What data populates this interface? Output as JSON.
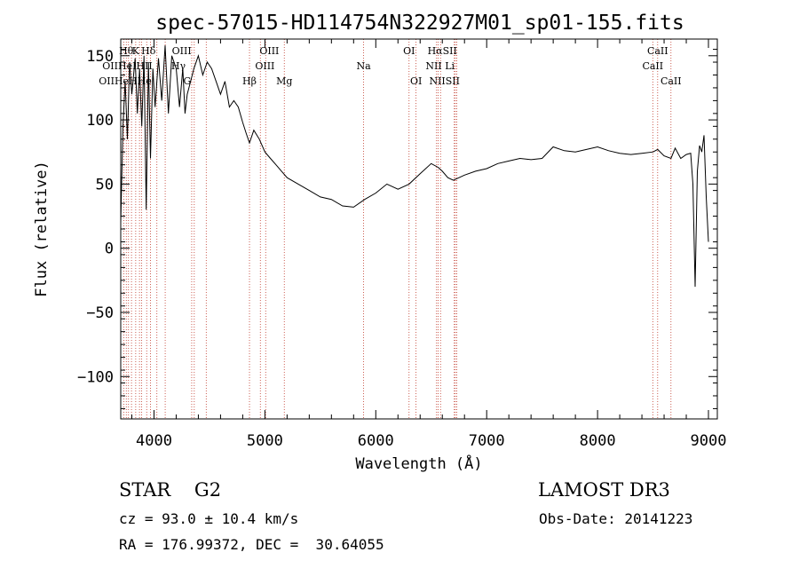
{
  "chart_data": {
    "type": "line",
    "title": "spec-57015-HD114754N322927M01_sp01-155.fits",
    "xlabel": "Wavelength (Å)",
    "ylabel": "Flux (relative)",
    "xlim": [
      3700,
      9080
    ],
    "ylim": [
      -133,
      163
    ],
    "x_ticks": [
      4000,
      5000,
      6000,
      7000,
      8000,
      9000
    ],
    "x_tick_labels": [
      "4000",
      "5000",
      "6000",
      "7000",
      "8000",
      "9000"
    ],
    "y_ticks": [
      -100,
      -50,
      0,
      50,
      100,
      150
    ],
    "y_tick_labels": [
      "−100",
      "−50",
      "0",
      "50",
      "100",
      "150"
    ],
    "grid": false,
    "series": [
      {
        "x": [
          3700,
          3720,
          3740,
          3760,
          3780,
          3800,
          3830,
          3850,
          3870,
          3890,
          3910,
          3930,
          3950,
          3968,
          3990,
          4010,
          4040,
          4070,
          4100,
          4130,
          4160,
          4200,
          4230,
          4260,
          4280,
          4300,
          4330,
          4360,
          4400,
          4440,
          4480,
          4520,
          4560,
          4600,
          4640,
          4680,
          4720,
          4760,
          4800,
          4830,
          4861,
          4900,
          4950,
          5000,
          5050,
          5100,
          5150,
          5200,
          5300,
          5400,
          5500,
          5600,
          5700,
          5800,
          5900,
          6000,
          6100,
          6200,
          6300,
          6400,
          6500,
          6563,
          6600,
          6650,
          6700,
          6750,
          6800,
          6900,
          7000,
          7100,
          7200,
          7300,
          7400,
          7500,
          7600,
          7700,
          7800,
          7900,
          8000,
          8100,
          8200,
          8300,
          8400,
          8500,
          8542,
          8600,
          8662,
          8700,
          8750,
          8800,
          8840,
          8860,
          8880,
          8900,
          8920,
          8940,
          8960,
          8980,
          9000
        ],
        "y": [
          20,
          95,
          130,
          85,
          145,
          120,
          148,
          105,
          140,
          95,
          150,
          30,
          145,
          70,
          140,
          110,
          148,
          115,
          158,
          105,
          150,
          140,
          110,
          140,
          105,
          120,
          130,
          140,
          150,
          135,
          145,
          140,
          130,
          120,
          130,
          110,
          115,
          110,
          98,
          90,
          82,
          92,
          85,
          75,
          70,
          65,
          60,
          55,
          50,
          45,
          40,
          38,
          33,
          32,
          38,
          43,
          50,
          46,
          50,
          58,
          66,
          63,
          60,
          55,
          53,
          55,
          57,
          60,
          62,
          66,
          68,
          70,
          69,
          70,
          79,
          76,
          75,
          77,
          79,
          76,
          74,
          73,
          74,
          75,
          77,
          72,
          70,
          78,
          70,
          73,
          74,
          50,
          -30,
          60,
          80,
          75,
          88,
          40,
          5
        ]
      }
    ],
    "line_labels": {
      "row1": [
        {
          "x": 3750,
          "text": "Hθ"
        },
        {
          "x": 3835,
          "text": "K"
        },
        {
          "x": 3950,
          "text": "Hδ"
        },
        {
          "x": 4250,
          "text": "OIII"
        },
        {
          "x": 5040,
          "text": "OIII"
        },
        {
          "x": 6300,
          "text": "OI"
        },
        {
          "x": 6600,
          "text": "HαSII"
        },
        {
          "x": 8542,
          "text": "CaII"
        }
      ],
      "row2": [
        {
          "x": 3760,
          "text": "OIIHeIHII"
        },
        {
          "x": 4220,
          "text": "Hγ"
        },
        {
          "x": 5000,
          "text": "OIII"
        },
        {
          "x": 5890,
          "text": "Na"
        },
        {
          "x": 6580,
          "text": "NII Li"
        },
        {
          "x": 8498,
          "text": "CaII"
        }
      ],
      "row3": [
        {
          "x": 3740,
          "text": "OIIHeHHe"
        },
        {
          "x": 4300,
          "text": "G"
        },
        {
          "x": 4861,
          "text": "Hβ"
        },
        {
          "x": 5175,
          "text": "Mg"
        },
        {
          "x": 6363,
          "text": "OI"
        },
        {
          "x": 6620,
          "text": "NIISII"
        },
        {
          "x": 8662,
          "text": "CaII"
        }
      ]
    },
    "line_markers": [
      3727,
      3750,
      3770,
      3797,
      3835,
      3869,
      3889,
      3934,
      3968,
      4026,
      4101,
      4340,
      4363,
      4471,
      4861,
      4959,
      5007,
      5175,
      5890,
      6300,
      6363,
      6548,
      6563,
      6584,
      6708,
      6717,
      6731,
      8498,
      8542,
      8662
    ]
  },
  "info": {
    "object_line": "STAR    G2",
    "survey": "LAMOST DR3",
    "cz": "cz = 93.0 ± 10.4 km/s",
    "obs_date": "Obs-Date: 20141223",
    "coords": "RA = 176.99372, DEC =  30.64055"
  }
}
